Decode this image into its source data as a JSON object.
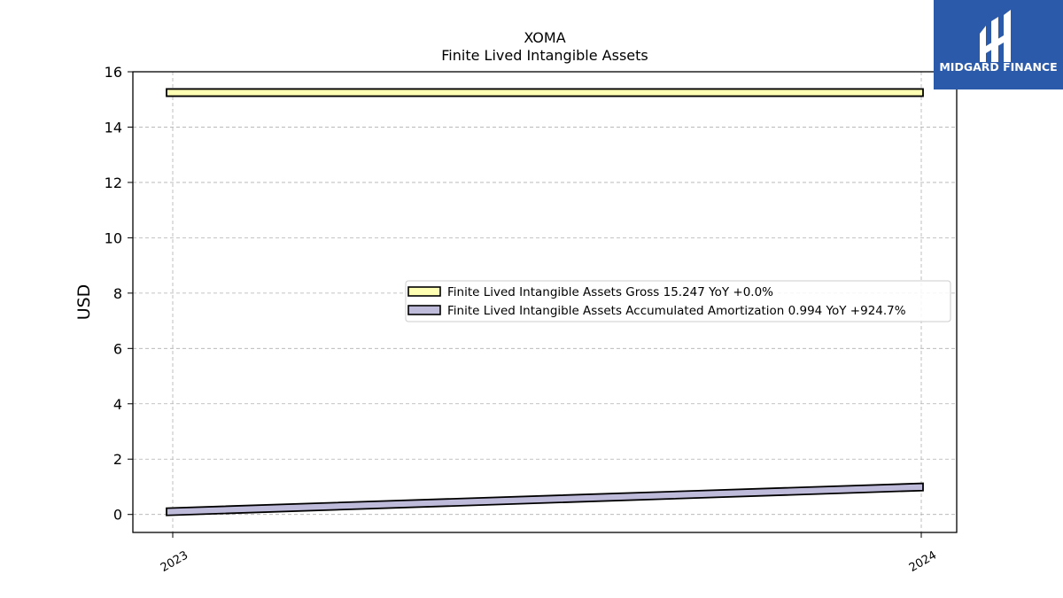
{
  "chart_data": {
    "type": "area",
    "title": "XOMA",
    "subtitle": "Finite Lived Intangible Assets",
    "xlabel": "",
    "ylabel": "USD",
    "categories": [
      "2023",
      "2024"
    ],
    "ylim": [
      -0.65,
      16
    ],
    "yticks": [
      0,
      2,
      4,
      6,
      8,
      10,
      12,
      14,
      16
    ],
    "grid": true,
    "legend_position": "center-right",
    "series": [
      {
        "name": "Finite Lived Intangible Assets Gross",
        "legend_label": "Finite Lived Intangible Assets Gross  15.247 YoY +0.0%",
        "values": [
          15.247,
          15.247
        ],
        "color": "#ffffb3"
      },
      {
        "name": "Finite Lived Intangible Assets Accumulated Amortization",
        "legend_label": "Finite Lived Intangible Assets Accumulated Amortization  0.994 YoY +924.7%",
        "values": [
          0.097,
          0.994
        ],
        "color": "#bebada"
      }
    ]
  },
  "logo": {
    "text": "MIDGARD FINANCE",
    "background": "#2b5aab"
  }
}
